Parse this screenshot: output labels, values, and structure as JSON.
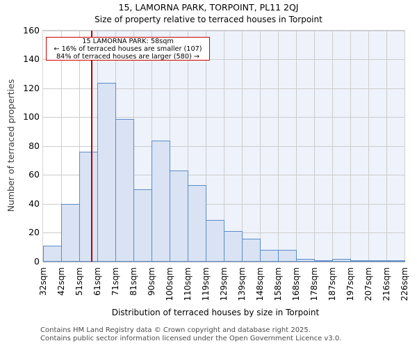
{
  "chart_data": {
    "type": "bar",
    "title": "15, LAMORNA PARK, TORPOINT, PL11 2QJ",
    "subtitle": "Size of property relative to terraced houses in Torpoint",
    "xlabel": "Distribution of terraced houses by size in Torpoint",
    "ylabel": "Number of terraced properties",
    "x_tick_labels": [
      "32sqm",
      "42sqm",
      "51sqm",
      "61sqm",
      "71sqm",
      "81sqm",
      "90sqm",
      "100sqm",
      "110sqm",
      "119sqm",
      "129sqm",
      "139sqm",
      "148sqm",
      "158sqm",
      "168sqm",
      "178sqm",
      "187sqm",
      "197sqm",
      "207sqm",
      "216sqm",
      "226sqm"
    ],
    "bin_edges_sqm": [
      32,
      42,
      51,
      61,
      71,
      81,
      90,
      100,
      110,
      119,
      129,
      139,
      148,
      158,
      168,
      178,
      187,
      197,
      207,
      216,
      226
    ],
    "values": [
      11,
      40,
      76,
      124,
      99,
      50,
      84,
      63,
      53,
      29,
      21,
      16,
      8,
      8,
      2,
      1,
      2,
      1,
      1,
      1
    ],
    "y_ticks": [
      0,
      20,
      40,
      60,
      80,
      100,
      120,
      140,
      160
    ],
    "ylim": [
      0,
      160
    ],
    "grid": true,
    "legend_position": "none",
    "marker": {
      "size_sqm": 58,
      "line1": "15 LAMORNA PARK: 58sqm",
      "line2": "← 16% of terraced houses are smaller (107)",
      "line3": "84% of terraced houses are larger (580) →"
    },
    "colors": {
      "bar_fill": "#d9e3f4",
      "bar_border": "#5b8cc8",
      "marker_line": "#b40000",
      "annotation_border": "#cc0000",
      "larger_region_bg": "#eef2fb",
      "gridline": "#cccccc"
    }
  },
  "footer": {
    "line1": "Contains HM Land Registry data © Crown copyright and database right 2025.",
    "line2": "Contains public sector information licensed under the Open Government Licence v3.0."
  }
}
